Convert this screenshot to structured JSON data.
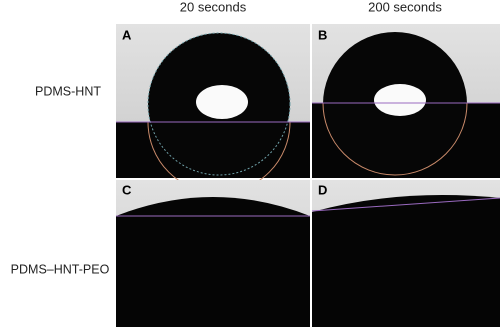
{
  "columns": [
    "20 seconds",
    "200 seconds"
  ],
  "rows": [
    "PDMS-HNT",
    "PDMS–HNT-PEO"
  ],
  "panels": [
    "A",
    "B",
    "C",
    "D"
  ]
}
